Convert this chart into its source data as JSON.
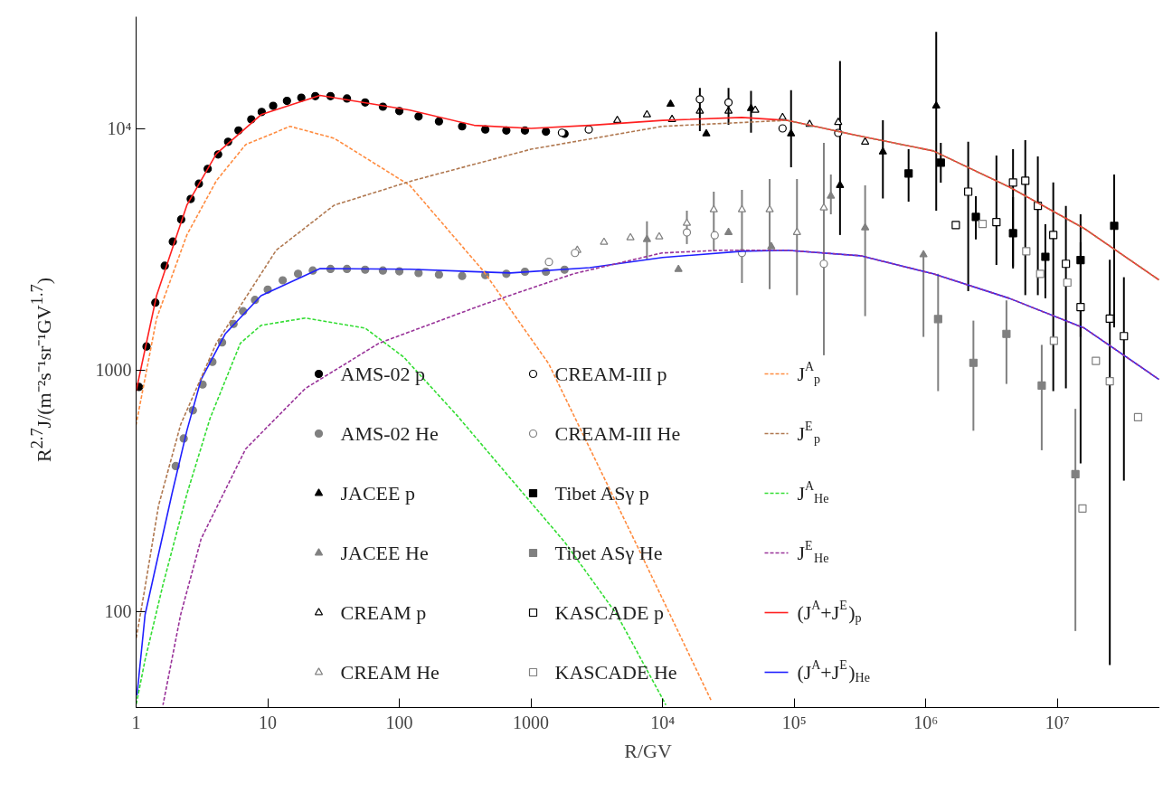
{
  "chart_data": {
    "type": "scatter",
    "xlabel": "R/GV",
    "ylabel": "R$^{2.7}$J/(m⁻²s⁻¹sr⁻¹GV$^{1.7}$)",
    "log": "xy",
    "xlim": [
      1,
      60000000
    ],
    "ylim": [
      40,
      29000
    ],
    "xticks": [
      1,
      10,
      100,
      1000,
      {
        "value": 10000,
        "label": "10⁴"
      },
      {
        "value": 100000,
        "label": "10⁵"
      },
      {
        "value": 1000000,
        "label": "10⁶"
      },
      {
        "value": 10000000,
        "label": "10⁷"
      }
    ],
    "yticks": [
      100,
      1000,
      {
        "value": 10000,
        "label": "10⁴"
      }
    ],
    "grid": false,
    "legend": "bottom",
    "series": [
      {
        "name": "AMS-02 p",
        "marker": "circle",
        "color": "#000000",
        "x": [
          1.05,
          1.2,
          1.4,
          1.65,
          1.9,
          2.2,
          2.6,
          3.0,
          3.5,
          4.2,
          5,
          6,
          7.5,
          9,
          11,
          14,
          18,
          23,
          30,
          40,
          55,
          75,
          100,
          140,
          200,
          300,
          450,
          650,
          900,
          1300,
          1800
        ],
        "values": [
          850,
          1250,
          1900,
          2700,
          3400,
          4200,
          5100,
          5900,
          6800,
          7800,
          8800,
          9800,
          10900,
          11700,
          12400,
          13000,
          13400,
          13600,
          13600,
          13300,
          12800,
          12300,
          11800,
          11200,
          10700,
          10200,
          9900,
          9800,
          9800,
          9700,
          9500
        ]
      },
      {
        "name": "AMS-02 He",
        "marker": "circle",
        "color": "#808080",
        "x": [
          2.0,
          2.3,
          2.7,
          3.2,
          3.8,
          4.5,
          5.5,
          6.5,
          8,
          10,
          13,
          17,
          22,
          30,
          40,
          55,
          75,
          100,
          140,
          200,
          300,
          450,
          650,
          900,
          1300,
          1800
        ],
        "values": [
          400,
          520,
          680,
          870,
          1080,
          1300,
          1550,
          1750,
          1950,
          2150,
          2350,
          2500,
          2580,
          2620,
          2620,
          2600,
          2580,
          2560,
          2520,
          2480,
          2450,
          2470,
          2500,
          2550,
          2550,
          2600
        ]
      },
      {
        "name": "JACEE p",
        "marker": "triangle",
        "color": "#000000",
        "x": [
          11500,
          21500,
          47000,
          94700,
          223000,
          472000,
          1200000
        ],
        "values": [
          12600,
          9500,
          12100,
          9500,
          5810,
          8000,
          12400
        ],
        "errors": [
          null,
          null,
          [
            9600,
            14300
          ],
          [
            6900,
            14400
          ],
          [
            3620,
            19000
          ],
          [
            5130,
            10800
          ],
          [
            4560,
            25100
          ]
        ]
      },
      {
        "name": "JACEE He",
        "marker": "triangle",
        "color": "#808080",
        "x": [
          7610,
          13200,
          31700,
          67000,
          190000,
          346000,
          960000
        ],
        "values": [
          3470,
          2610,
          3710,
          3240,
          5250,
          3880,
          3000
        ],
        "errors": [
          [
            2870,
            4120
          ],
          null,
          null,
          null,
          [
            4410,
            6440
          ],
          [
            1670,
            5810
          ],
          [
            1370,
            3000
          ]
        ]
      },
      {
        "name": "CREAM p",
        "marker": "triangle_open",
        "color": "#000000",
        "x": [
          4530,
          7610,
          11800,
          19200,
          31700,
          50600,
          81600,
          131000,
          216000,
          346000
        ],
        "values": [
          10800,
          11400,
          10900,
          11800,
          11800,
          11900,
          11100,
          10400,
          10600,
          8790
        ]
      },
      {
        "name": "CREAM He",
        "marker": "triangle_open",
        "color": "#808080",
        "x": [
          2250,
          3590,
          5700,
          9430,
          15300,
          24500,
          40100,
          65100,
          105000,
          168000
        ],
        "values": [
          3130,
          3380,
          3530,
          3560,
          4050,
          4610,
          4610,
          4610,
          3710,
          4690
        ],
        "errors": [
          null,
          null,
          null,
          null,
          [
            3320,
            4560
          ],
          [
            3100,
            5470
          ],
          [
            2290,
            5570
          ],
          [
            2160,
            6170
          ],
          [
            2040,
            6170
          ],
          [
            1150,
            8720
          ]
        ]
      },
      {
        "name": "CREAM-III p",
        "marker": "circle_open",
        "color": "#000000",
        "x": [
          1720,
          2750,
          19200,
          31700,
          81600,
          216000
        ],
        "values": [
          9600,
          9900,
          13200,
          12800,
          10000,
          9580
        ],
        "errors": [
          null,
          null,
          [
            9750,
            14700
          ],
          [
            10350,
            14700
          ],
          null,
          null
        ]
      },
      {
        "name": "CREAM-III He",
        "marker": "circle_open",
        "color": "#808080",
        "x": [
          1370,
          2160,
          15300,
          24900,
          40100,
          168000
        ],
        "values": [
          2800,
          3050,
          3710,
          3610,
          3050,
          2750
        ]
      },
      {
        "name": "Tibet ASγ p",
        "marker": "square",
        "color": "#000000",
        "x": [
          740000,
          1300000,
          2400000,
          4600000,
          8100000,
          15000000,
          27000000
        ],
        "values": [
          6510,
          7210,
          4300,
          3680,
          2940,
          2850,
          3950
        ],
        "errors": [
          [
            4980,
            8200
          ],
          [
            5960,
            8720
          ],
          [
            3470,
            5240
          ],
          [
            2680,
            5190
          ],
          [
            1980,
            4010
          ],
          [
            1370,
            3380
          ],
          [
            1500,
            6440
          ]
        ]
      },
      {
        "name": "Tibet ASγ He",
        "marker": "square",
        "color": "#808080",
        "x": [
          1240000,
          2300000,
          4100000,
          7600000,
          13700000
        ],
        "values": [
          1625,
          1070,
          1410,
          861,
          370
        ],
        "errors": [
          [
            817,
            2500
          ],
          [
            560,
            1600
          ],
          [
            875,
            1940
          ],
          [
            465,
            1270
          ],
          [
            83,
            690
          ]
        ]
      },
      {
        "name": "KASCADE p",
        "marker": "square_open",
        "color": "#000000",
        "x": [
          1690000,
          2100000,
          3440000,
          4600000,
          5700000,
          7100000,
          9300000,
          11600000,
          15000000,
          25000000,
          32000000
        ],
        "values": [
          3980,
          5470,
          4090,
          5970,
          6070,
          4780,
          3620,
          2750,
          1820,
          1630,
          1380
        ],
        "errors": [
          null,
          [
            2120,
            8800
          ],
          [
            2720,
            7720
          ],
          [
            2630,
            8200
          ],
          [
            2040,
            8940
          ],
          [
            2040,
            7650
          ],
          [
            817,
            5970
          ],
          [
            839,
            4780
          ],
          [
            410,
            4410
          ],
          [
            60,
            2860
          ],
          [
            348,
            2420
          ]
        ]
      },
      {
        "name": "KASCADE He",
        "marker": "square_open",
        "color": "#808080",
        "x": [
          2700000,
          5800000,
          7400000,
          9400000,
          11900000,
          15500000,
          19600000,
          25000000,
          41000000
        ],
        "values": [
          4020,
          3100,
          2500,
          1320,
          2300,
          267,
          1090,
          898,
          637
        ]
      },
      {
        "name": "J$^{A}$$_{p}$",
        "type": "line",
        "line_style": "dashed",
        "color": "#ff8c40",
        "x": [
          1,
          1.43,
          2.43,
          4.07,
          6.8,
          14.8,
          32,
          120,
          437,
          1365,
          6200,
          23300
        ],
        "values": [
          594,
          1630,
          3620,
          6070,
          8570,
          10200,
          9100,
          5810,
          2560,
          1060,
          194,
          43
        ]
      },
      {
        "name": "J$^{E}$$_{p}$",
        "type": "line",
        "line_style": "dashed",
        "color": "#b07850",
        "x": [
          1,
          1.17,
          1.48,
          2.18,
          4.07,
          11.6,
          32,
          125,
          1000,
          10000,
          88000,
          305000,
          1140000,
          4300000,
          16000000,
          59000000
        ],
        "values": [
          77,
          126,
          274,
          594,
          1290,
          3130,
          4810,
          6070,
          8200,
          10200,
          10800,
          9330,
          8070,
          5720,
          3850,
          2360
        ]
      },
      {
        "name": "J$^{A}$$_{He}$",
        "type": "line",
        "line_style": "dashed",
        "color": "#33dd33",
        "x": [
          1,
          1.17,
          1.6,
          2.43,
          3.65,
          6.2,
          8.9,
          19.3,
          55,
          108,
          275,
          700,
          1800,
          4500,
          10600
        ],
        "values": [
          41,
          63,
          129,
          306,
          631,
          1290,
          1530,
          1640,
          1490,
          1130,
          647,
          355,
          194,
          97,
          41
        ]
      },
      {
        "name": "J$^{E}$$_{He}$",
        "type": "line",
        "line_style": "dashed",
        "color": "#993399",
        "x": [
          1.6,
          2.18,
          3.12,
          6.8,
          19.3,
          70,
          440,
          2100,
          9880,
          28000,
          88000,
          319000,
          1140000,
          4300000,
          16000000,
          59000000
        ],
        "values": [
          41,
          97,
          200,
          471,
          838,
          1290,
          1870,
          2500,
          3050,
          3130,
          3130,
          2970,
          2500,
          1980,
          1490,
          914
        ]
      },
      {
        "name": "(J$^{A}$+J$^{E}$)$_{p}$",
        "type": "line",
        "line_style": "solid",
        "color": "#ff2020",
        "x": [
          1,
          1.43,
          2.43,
          4.07,
          8.9,
          25,
          120,
          370,
          1000,
          2800,
          10000,
          40000,
          88000,
          305000,
          1140000,
          4300000,
          16000000,
          59000000
        ],
        "values": [
          817,
          2030,
          4810,
          7850,
          11400,
          13700,
          11900,
          10300,
          10000,
          10300,
          10800,
          11100,
          10800,
          9330,
          8070,
          5720,
          3850,
          2360
        ]
      },
      {
        "name": "(J$^{A}$+J$^{E}$)$_{He}$",
        "type": "line",
        "line_style": "solid",
        "color": "#2020ff",
        "x": [
          1.016,
          1.17,
          1.87,
          2.43,
          3.12,
          4.75,
          8.9,
          25,
          120,
          700,
          2800,
          10000,
          40000,
          88000,
          319000,
          1140000,
          4300000,
          16000000,
          59000000
        ],
        "values": [
          45,
          97,
          306,
          560,
          914,
          1410,
          2030,
          2630,
          2610,
          2520,
          2650,
          2920,
          3100,
          3130,
          2970,
          2500,
          1980,
          1490,
          914
        ]
      }
    ]
  }
}
